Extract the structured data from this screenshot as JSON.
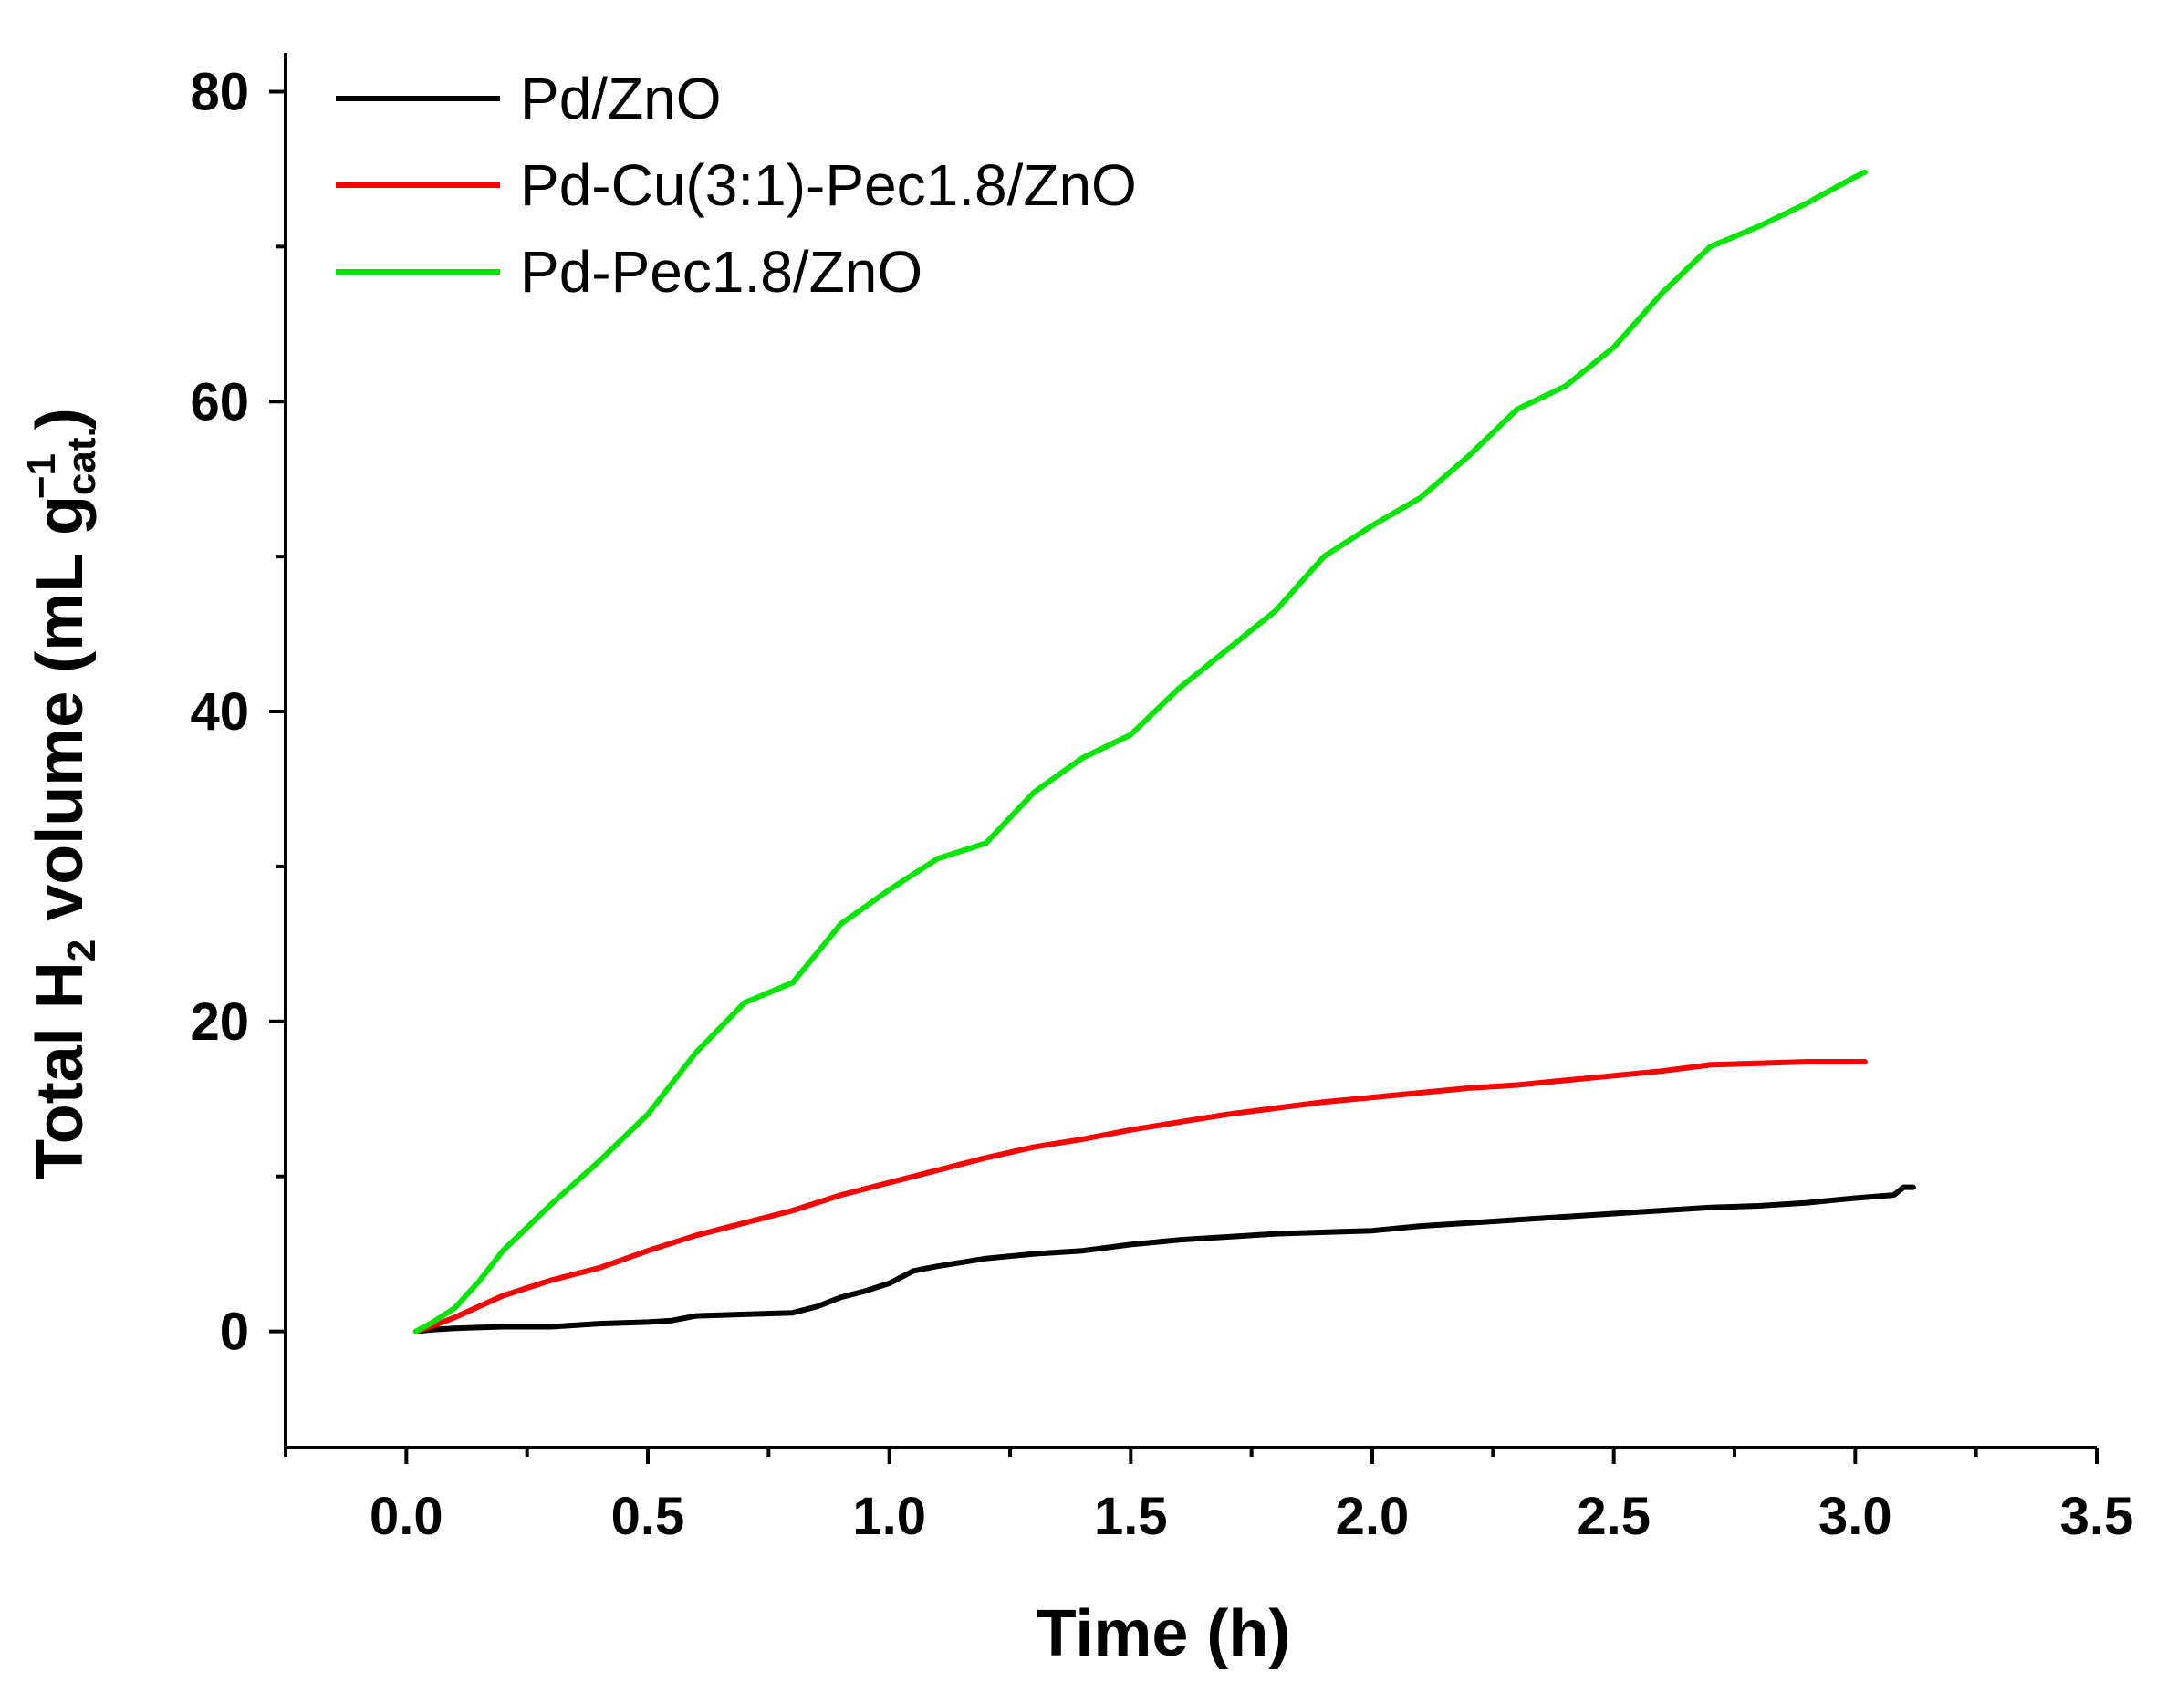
{
  "chart_data": {
    "type": "line",
    "title": "",
    "xlabel": "Time (h)",
    "ylabel": {
      "main": "Total H",
      "sub": "2",
      "unit_open": " volume (mL g",
      "unit_sub": "cat.",
      "unit_sup": "−1",
      "unit_close": ")"
    },
    "xlim": [
      -0.25,
      3.5
    ],
    "ylim": [
      -7.5,
      82.5
    ],
    "xticks": [
      0.0,
      0.5,
      1.0,
      1.5,
      2.0,
      2.5,
      3.0,
      3.5
    ],
    "xtick_labels": [
      "0.0",
      "0.5",
      "1.0",
      "1.5",
      "2.0",
      "2.5",
      "3.0",
      "3.5"
    ],
    "yticks": [
      0,
      20,
      40,
      60,
      80
    ],
    "ytick_labels": [
      "0",
      "20",
      "40",
      "60",
      "80"
    ],
    "grid": false,
    "legend_position": "top-left",
    "series": [
      {
        "name": "Pd/ZnO",
        "color": "#000000",
        "x": [
          0.02,
          0.05,
          0.1,
          0.2,
          0.3,
          0.4,
          0.5,
          0.55,
          0.6,
          0.7,
          0.8,
          0.85,
          0.9,
          0.95,
          1.0,
          1.05,
          1.1,
          1.2,
          1.3,
          1.4,
          1.5,
          1.6,
          1.7,
          1.8,
          1.9,
          2.0,
          2.1,
          2.2,
          2.3,
          2.4,
          2.5,
          2.6,
          2.7,
          2.8,
          2.9,
          3.0,
          3.08,
          3.1,
          3.12
        ],
        "y": [
          0.0,
          0.1,
          0.2,
          0.3,
          0.3,
          0.5,
          0.6,
          0.7,
          1.0,
          1.1,
          1.2,
          1.6,
          2.2,
          2.6,
          3.1,
          3.9,
          4.2,
          4.7,
          5.0,
          5.2,
          5.6,
          5.9,
          6.1,
          6.3,
          6.4,
          6.5,
          6.8,
          7.0,
          7.2,
          7.4,
          7.6,
          7.8,
          8.0,
          8.1,
          8.3,
          8.6,
          8.8,
          9.3,
          9.3
        ]
      },
      {
        "name": "Pd-Cu(3:1)-Pec1.8/ZnO",
        "color": "#ff0000",
        "x": [
          0.02,
          0.05,
          0.1,
          0.15,
          0.2,
          0.3,
          0.4,
          0.5,
          0.6,
          0.7,
          0.8,
          0.9,
          1.0,
          1.1,
          1.2,
          1.3,
          1.4,
          1.5,
          1.6,
          1.7,
          1.8,
          1.9,
          2.0,
          2.1,
          2.2,
          2.3,
          2.4,
          2.5,
          2.6,
          2.7,
          2.8,
          2.9,
          3.0,
          3.02
        ],
        "y": [
          0.0,
          0.3,
          0.9,
          1.6,
          2.3,
          3.3,
          4.1,
          5.2,
          6.2,
          7.0,
          7.8,
          8.8,
          9.6,
          10.4,
          11.2,
          11.9,
          12.4,
          13.0,
          13.5,
          14.0,
          14.4,
          14.8,
          15.1,
          15.4,
          15.7,
          15.9,
          16.2,
          16.5,
          16.8,
          17.2,
          17.3,
          17.4,
          17.4,
          17.4
        ]
      },
      {
        "name": "Pd-Pec1.8/ZnO",
        "color": "#00e600",
        "x": [
          0.02,
          0.05,
          0.1,
          0.15,
          0.2,
          0.3,
          0.4,
          0.5,
          0.6,
          0.7,
          0.8,
          0.9,
          1.0,
          1.1,
          1.2,
          1.3,
          1.4,
          1.5,
          1.6,
          1.7,
          1.8,
          1.9,
          2.0,
          2.1,
          2.2,
          2.3,
          2.4,
          2.5,
          2.6,
          2.7,
          2.8,
          2.9,
          3.0,
          3.02
        ],
        "y": [
          0.0,
          0.5,
          1.5,
          3.2,
          5.2,
          8.2,
          11.0,
          14.0,
          18.0,
          21.2,
          22.5,
          26.3,
          28.5,
          30.5,
          31.5,
          34.8,
          37.0,
          38.5,
          41.5,
          44.0,
          46.5,
          50.0,
          52.0,
          53.8,
          56.5,
          59.5,
          61.0,
          63.5,
          67.0,
          70.0,
          71.3,
          72.8,
          74.5,
          74.8
        ]
      }
    ]
  }
}
